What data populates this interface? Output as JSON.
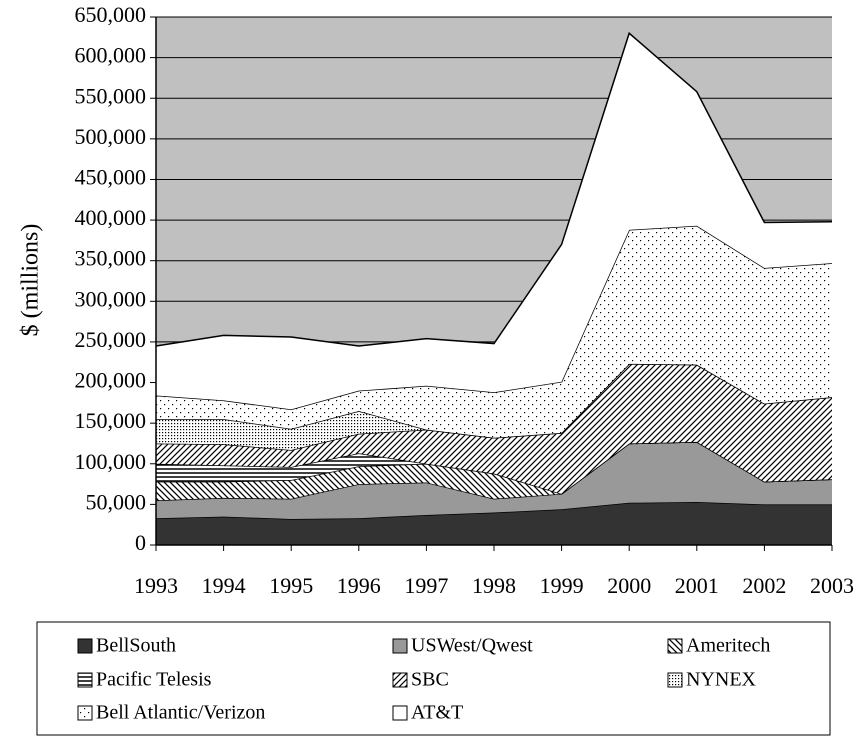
{
  "chart_data": {
    "type": "stacked-area",
    "y_label": "$ (millions)",
    "categories": [
      "1993",
      "1994",
      "1995",
      "1996",
      "1997",
      "1998",
      "1999",
      "2000",
      "2001",
      "2002",
      "2003"
    ],
    "ylim": [
      0,
      650000
    ],
    "yticks": [
      0,
      {
        "value": 50000,
        "label": "50,000"
      },
      {
        "value": 100000,
        "label": "100,000"
      },
      {
        "value": 150000,
        "label": "150,000"
      },
      {
        "value": 200000,
        "label": "200,000"
      },
      {
        "value": 250000,
        "label": "250,000"
      },
      {
        "value": 300000,
        "label": "300,000"
      },
      {
        "value": 350000,
        "label": "350,000"
      },
      {
        "value": 400000,
        "label": "400,000"
      },
      {
        "value": 450000,
        "label": "450,000"
      },
      {
        "value": 500000,
        "label": "500,000"
      },
      {
        "value": 550000,
        "label": "550,000"
      },
      {
        "value": 600000,
        "label": "600,000"
      },
      {
        "value": 650000,
        "label": "650,000"
      }
    ],
    "grid": true,
    "legend": "bottom",
    "series": [
      {
        "name": "BellSouth",
        "color": "#333333",
        "values": [
          33000,
          35000,
          32000,
          33000,
          37000,
          40000,
          44000,
          52000,
          53000,
          50000,
          50000
        ]
      },
      {
        "name": "USWest/Qwest",
        "color": "#999999",
        "values": [
          22000,
          23000,
          25000,
          42000,
          40000,
          17000,
          19000,
          73000,
          74000,
          28000,
          31000
        ]
      },
      {
        "name": "Ameritech",
        "color": "#ffffff",
        "values": [
          23000,
          20000,
          23000,
          22000,
          23000,
          31000,
          0,
          0,
          0,
          0,
          0
        ]
      },
      {
        "name": "Pacific Telesis",
        "color": "#ffffff",
        "values": [
          22000,
          20000,
          16000,
          16000,
          0,
          0,
          0,
          0,
          0,
          0,
          0
        ]
      },
      {
        "name": "SBC",
        "color": "#ffffff",
        "values": [
          25000,
          26000,
          21000,
          24000,
          42000,
          44000,
          75000,
          98000,
          95000,
          96000,
          101000
        ]
      },
      {
        "name": "NYNEX",
        "color": "#ffffff",
        "values": [
          30000,
          31000,
          26000,
          28000,
          0,
          0,
          0,
          0,
          0,
          0,
          0
        ]
      },
      {
        "name": "Bell Atlantic/Verizon",
        "color": "#ffffff",
        "values": [
          29000,
          23000,
          24000,
          25000,
          54000,
          56000,
          63000,
          165000,
          171000,
          167000,
          165000
        ]
      },
      {
        "name": "AT&T",
        "color": "#ffffff",
        "values": [
          61000,
          80000,
          89000,
          55000,
          58000,
          60000,
          169000,
          242000,
          165000,
          56000,
          51000
        ]
      }
    ]
  }
}
